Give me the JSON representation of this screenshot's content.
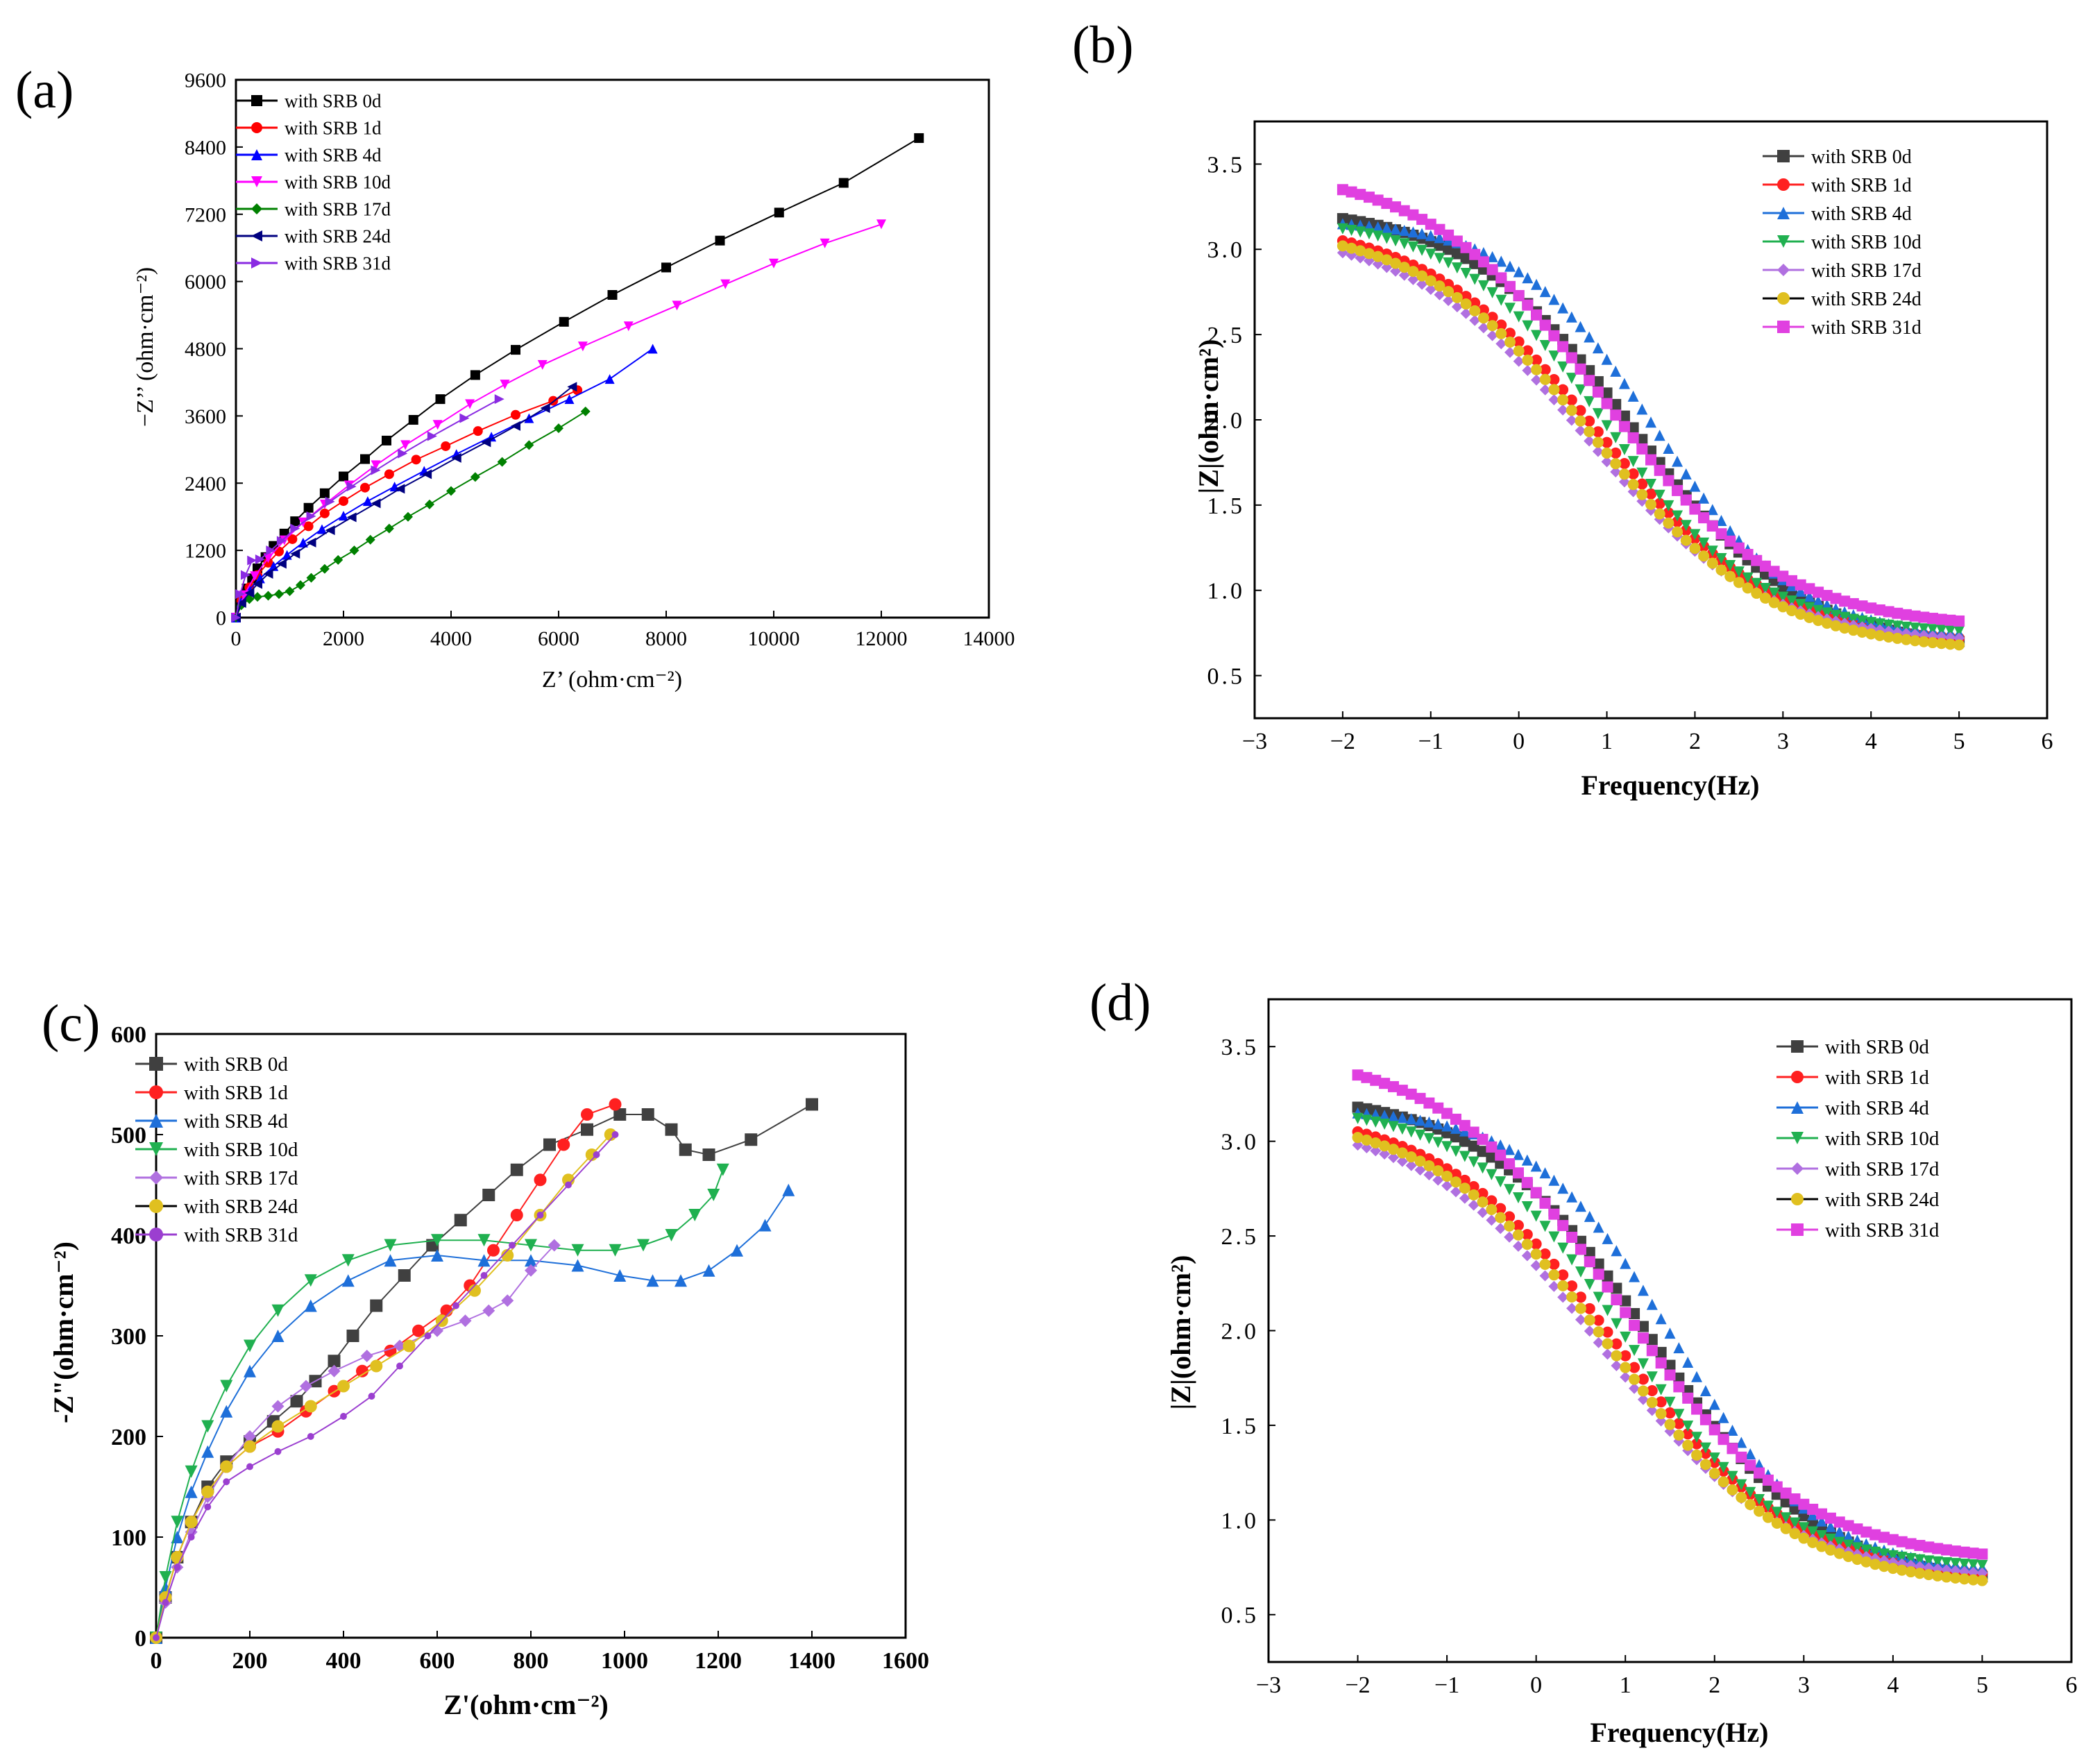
{
  "figure": {
    "panel_labels": [
      "(a)",
      "(b)",
      "(c)",
      "(d)"
    ]
  },
  "chart_data": [
    {
      "id": "a",
      "type": "scatter",
      "title": "",
      "xlabel": "Z’ (ohm·cm⁻²)",
      "ylabel": "−Z’’ (ohm·cm⁻²)",
      "xlim": [
        0,
        14000
      ],
      "ylim": [
        0,
        9600
      ],
      "xticks": [
        0,
        2000,
        4000,
        6000,
        8000,
        10000,
        12000,
        14000
      ],
      "yticks": [
        0,
        1200,
        2400,
        3600,
        4800,
        6000,
        7200,
        8400,
        9600
      ],
      "legend_position": "top-left",
      "series": [
        {
          "name": "with SRB 0d",
          "color": "#000000",
          "marker": "square",
          "x": [
            0,
            100,
            200,
            300,
            400,
            550,
            700,
            900,
            1100,
            1350,
            1650,
            2000,
            2400,
            2800,
            3300,
            3800,
            4450,
            5200,
            6100,
            7000,
            8000,
            9000,
            10100,
            11300,
            12700
          ],
          "y": [
            0,
            300,
            520,
            700,
            880,
            1080,
            1280,
            1500,
            1720,
            1960,
            2220,
            2520,
            2830,
            3160,
            3530,
            3900,
            4330,
            4780,
            5280,
            5760,
            6250,
            6730,
            7230,
            7760,
            8560
          ]
        },
        {
          "name": "with SRB 1d",
          "color": "#ff0000",
          "marker": "circle",
          "x": [
            0,
            100,
            250,
            400,
            600,
            800,
            1050,
            1350,
            1650,
            2000,
            2400,
            2850,
            3350,
            3900,
            4500,
            5200,
            5900,
            6350
          ],
          "y": [
            0,
            300,
            540,
            760,
            980,
            1180,
            1400,
            1630,
            1860,
            2080,
            2320,
            2560,
            2820,
            3060,
            3330,
            3620,
            3870,
            4060
          ]
        },
        {
          "name": "with SRB 4d",
          "color": "#0000ff",
          "marker": "triangle-up",
          "x": [
            0,
            100,
            250,
            450,
            700,
            950,
            1250,
            1600,
            2000,
            2450,
            2950,
            3500,
            4100,
            4750,
            5450,
            6200,
            6950,
            7750
          ],
          "y": [
            0,
            280,
            500,
            700,
            920,
            1120,
            1340,
            1580,
            1820,
            2080,
            2340,
            2620,
            2920,
            3230,
            3560,
            3900,
            4260,
            4800
          ]
        },
        {
          "name": "with SRB 10d",
          "color": "#ff00ff",
          "marker": "triangle-down",
          "x": [
            0,
            150,
            350,
            600,
            900,
            1250,
            1650,
            2100,
            2600,
            3150,
            3750,
            4350,
            5000,
            5700,
            6450,
            7300,
            8200,
            9100,
            10000,
            10950,
            12000
          ],
          "y": [
            0,
            400,
            740,
            1060,
            1380,
            1700,
            2020,
            2360,
            2720,
            3080,
            3440,
            3810,
            4160,
            4510,
            4840,
            5200,
            5570,
            5950,
            6320,
            6680,
            7020
          ]
        },
        {
          "name": "with SRB 17d",
          "color": "#008000",
          "marker": "diamond",
          "x": [
            0,
            100,
            250,
            400,
            600,
            800,
            1000,
            1200,
            1400,
            1650,
            1900,
            2200,
            2500,
            2850,
            3200,
            3600,
            4000,
            4450,
            4950,
            5450,
            6000,
            6500
          ],
          "y": [
            0,
            220,
            330,
            370,
            390,
            420,
            470,
            580,
            710,
            870,
            1030,
            1200,
            1390,
            1590,
            1800,
            2020,
            2260,
            2510,
            2780,
            3080,
            3380,
            3680
          ]
        },
        {
          "name": "with SRB 24d",
          "color": "#000080",
          "marker": "triangle-left",
          "x": [
            0,
            100,
            250,
            400,
            600,
            850,
            1100,
            1400,
            1750,
            2150,
            2600,
            3050,
            3550,
            4100,
            4650,
            5200,
            5750,
            6250
          ],
          "y": [
            0,
            260,
            440,
            600,
            780,
            960,
            1140,
            1340,
            1560,
            1790,
            2040,
            2300,
            2560,
            2850,
            3130,
            3420,
            3740,
            4120
          ]
        },
        {
          "name": "with SRB 31d",
          "color": "#8a2be2",
          "marker": "triangle-right",
          "x": [
            0,
            80,
            180,
            300,
            450,
            650,
            850,
            1100,
            1400,
            1750,
            2150,
            2600,
            3100,
            3650,
            4250,
            4900
          ],
          "y": [
            0,
            420,
            760,
            1020,
            1040,
            1200,
            1370,
            1590,
            1810,
            2070,
            2340,
            2630,
            2930,
            3240,
            3560,
            3900
          ]
        }
      ]
    },
    {
      "id": "b",
      "type": "scatter",
      "title": "",
      "xlabel": "Frequency(Hz)",
      "ylabel": "|Z|(ohm·cm²)",
      "xlim": [
        -3,
        6
      ],
      "ylim": [
        0.25,
        3.75
      ],
      "xticks": [
        -3,
        -2,
        -1,
        0,
        1,
        2,
        3,
        4,
        5,
        6
      ],
      "yticks": [
        0.5,
        1.0,
        1.5,
        2.0,
        2.5,
        3.0,
        3.5
      ],
      "legend_position": "top-right",
      "series": [
        {
          "name": "with SRB 0d",
          "color": "#404040",
          "marker": "square",
          "x": [
            -2,
            5
          ],
          "y": [
            3.18,
            0.7
          ],
          "mid": 1.3,
          "k": 1.05
        },
        {
          "name": "with SRB 1d",
          "color": "#ff2020",
          "marker": "circle",
          "x": [
            -2,
            5
          ],
          "y": [
            3.05,
            0.72
          ],
          "mid": 0.9,
          "k": 1.0
        },
        {
          "name": "with SRB 4d",
          "color": "#1e6fd9",
          "marker": "triangle-up",
          "x": [
            -2,
            5
          ],
          "y": [
            3.15,
            0.75
          ],
          "mid": 1.55,
          "k": 1.25
        },
        {
          "name": "with SRB 10d",
          "color": "#20b050",
          "marker": "triangle-down",
          "x": [
            -2,
            5
          ],
          "y": [
            3.12,
            0.76
          ],
          "mid": 1.0,
          "k": 1.15
        },
        {
          "name": "with SRB 17d",
          "color": "#b070e0",
          "marker": "diamond",
          "x": [
            -2,
            5
          ],
          "y": [
            2.98,
            0.72
          ],
          "mid": 0.75,
          "k": 1.0
        },
        {
          "name": "with SRB 24d",
          "color": "#e0c020",
          "marker": "circle",
          "x": [
            -2,
            5
          ],
          "y": [
            3.02,
            0.68
          ],
          "mid": 0.85,
          "k": 1.0
        },
        {
          "name": "with SRB 31d",
          "color": "#e040e0",
          "marker": "square",
          "x": [
            -2,
            5
          ],
          "y": [
            3.35,
            0.82
          ],
          "mid": 0.95,
          "k": 1.0
        }
      ]
    },
    {
      "id": "c",
      "type": "scatter",
      "title": "",
      "xlabel": "Z'(ohm·cm⁻²)",
      "ylabel": "-Z\"(ohm·cm⁻²)",
      "xlim": [
        0,
        1600
      ],
      "ylim": [
        0,
        600
      ],
      "xticks": [
        0,
        200,
        400,
        600,
        800,
        1000,
        1200,
        1400,
        1600
      ],
      "yticks": [
        0,
        100,
        200,
        300,
        400,
        500,
        600
      ],
      "legend_position": "top-left",
      "series": [
        {
          "name": "with SRB 0d",
          "color": "#404040",
          "marker": "square",
          "x": [
            0,
            20,
            45,
            75,
            110,
            150,
            200,
            250,
            300,
            340,
            380,
            420,
            470,
            530,
            590,
            650,
            710,
            770,
            840,
            920,
            990,
            1050,
            1100,
            1130,
            1180,
            1270,
            1400
          ],
          "y": [
            0,
            40,
            80,
            115,
            150,
            175,
            195,
            215,
            235,
            255,
            275,
            300,
            330,
            360,
            390,
            415,
            440,
            465,
            490,
            505,
            520,
            520,
            505,
            485,
            480,
            495,
            530
          ]
        },
        {
          "name": "with SRB 1d",
          "color": "#ff2020",
          "marker": "circle",
          "x": [
            0,
            20,
            45,
            75,
            110,
            150,
            200,
            260,
            320,
            380,
            440,
            500,
            560,
            620,
            670,
            720,
            770,
            820,
            870,
            920,
            980
          ],
          "y": [
            0,
            40,
            80,
            115,
            145,
            170,
            190,
            205,
            225,
            245,
            265,
            285,
            305,
            325,
            350,
            385,
            420,
            455,
            490,
            520,
            530
          ]
        },
        {
          "name": "with SRB 4d",
          "color": "#1e6fd9",
          "marker": "triangle-up",
          "x": [
            0,
            20,
            45,
            75,
            110,
            150,
            200,
            260,
            330,
            410,
            500,
            600,
            700,
            800,
            900,
            990,
            1060,
            1120,
            1180,
            1240,
            1300,
            1350
          ],
          "y": [
            0,
            50,
            100,
            145,
            185,
            225,
            265,
            300,
            330,
            355,
            375,
            380,
            375,
            375,
            370,
            360,
            355,
            355,
            365,
            385,
            410,
            445
          ]
        },
        {
          "name": "with SRB 10d",
          "color": "#20b050",
          "marker": "triangle-down",
          "x": [
            0,
            20,
            45,
            75,
            110,
            150,
            200,
            260,
            330,
            410,
            500,
            600,
            700,
            800,
            900,
            980,
            1040,
            1100,
            1150,
            1190,
            1210
          ],
          "y": [
            0,
            60,
            115,
            165,
            210,
            250,
            290,
            325,
            355,
            375,
            390,
            395,
            395,
            390,
            385,
            385,
            390,
            400,
            420,
            440,
            465
          ]
        },
        {
          "name": "with SRB 17d",
          "color": "#b070e0",
          "marker": "diamond",
          "x": [
            0,
            20,
            45,
            75,
            110,
            150,
            200,
            260,
            320,
            380,
            450,
            520,
            600,
            660,
            710,
            750,
            800,
            850
          ],
          "y": [
            0,
            35,
            70,
            105,
            140,
            170,
            200,
            230,
            250,
            265,
            280,
            290,
            305,
            315,
            325,
            335,
            365,
            390
          ]
        },
        {
          "name": "with SRB 24d",
          "color": "#e0c020",
          "marker": "circle",
          "x": [
            0,
            20,
            45,
            75,
            110,
            150,
            200,
            260,
            330,
            400,
            470,
            540,
            610,
            680,
            750,
            820,
            880,
            930,
            970
          ],
          "y": [
            0,
            40,
            80,
            115,
            145,
            170,
            190,
            210,
            230,
            250,
            270,
            290,
            315,
            345,
            380,
            420,
            455,
            480,
            500
          ]
        },
        {
          "name": "with SRB 31d",
          "color": "#9b3fd0",
          "marker": "small",
          "x": [
            0,
            20,
            45,
            75,
            110,
            150,
            200,
            260,
            330,
            400,
            460,
            520,
            580,
            640,
            700,
            760,
            820,
            880,
            940,
            980
          ],
          "y": [
            0,
            35,
            70,
            100,
            130,
            155,
            170,
            185,
            200,
            220,
            240,
            270,
            300,
            330,
            360,
            390,
            420,
            450,
            480,
            500
          ]
        }
      ]
    },
    {
      "id": "d",
      "type": "scatter",
      "title": "",
      "xlabel": "Frequency(Hz)",
      "ylabel": "|Z|(ohm·cm²)",
      "xlim": [
        -3,
        6
      ],
      "ylim": [
        0.25,
        3.75
      ],
      "xticks": [
        -3,
        -2,
        -1,
        0,
        1,
        2,
        3,
        4,
        5,
        6
      ],
      "yticks": [
        0.5,
        1.0,
        1.5,
        2.0,
        2.5,
        3.0,
        3.5
      ],
      "legend_position": "top-right",
      "series": [
        {
          "name": "with SRB 0d",
          "color": "#404040",
          "marker": "square",
          "x": [
            -2,
            5
          ],
          "y": [
            3.18,
            0.7
          ],
          "mid": 1.3,
          "k": 1.05
        },
        {
          "name": "with SRB 1d",
          "color": "#ff2020",
          "marker": "circle",
          "x": [
            -2,
            5
          ],
          "y": [
            3.05,
            0.72
          ],
          "mid": 0.9,
          "k": 1.0
        },
        {
          "name": "with SRB 4d",
          "color": "#1e6fd9",
          "marker": "triangle-up",
          "x": [
            -2,
            5
          ],
          "y": [
            3.15,
            0.75
          ],
          "mid": 1.55,
          "k": 1.25
        },
        {
          "name": "with SRB 10d",
          "color": "#20b050",
          "marker": "triangle-down",
          "x": [
            -2,
            5
          ],
          "y": [
            3.12,
            0.76
          ],
          "mid": 1.0,
          "k": 1.15
        },
        {
          "name": "with SRB 17d",
          "color": "#b070e0",
          "marker": "diamond",
          "x": [
            -2,
            5
          ],
          "y": [
            2.98,
            0.72
          ],
          "mid": 0.75,
          "k": 1.0
        },
        {
          "name": "with SRB 24d",
          "color": "#e0c020",
          "marker": "circle",
          "x": [
            -2,
            5
          ],
          "y": [
            3.02,
            0.68
          ],
          "mid": 0.85,
          "k": 1.0
        },
        {
          "name": "with SRB 31d",
          "color": "#e040e0",
          "marker": "square",
          "x": [
            -2,
            5
          ],
          "y": [
            3.35,
            0.82
          ],
          "mid": 0.95,
          "k": 1.0
        }
      ]
    }
  ]
}
